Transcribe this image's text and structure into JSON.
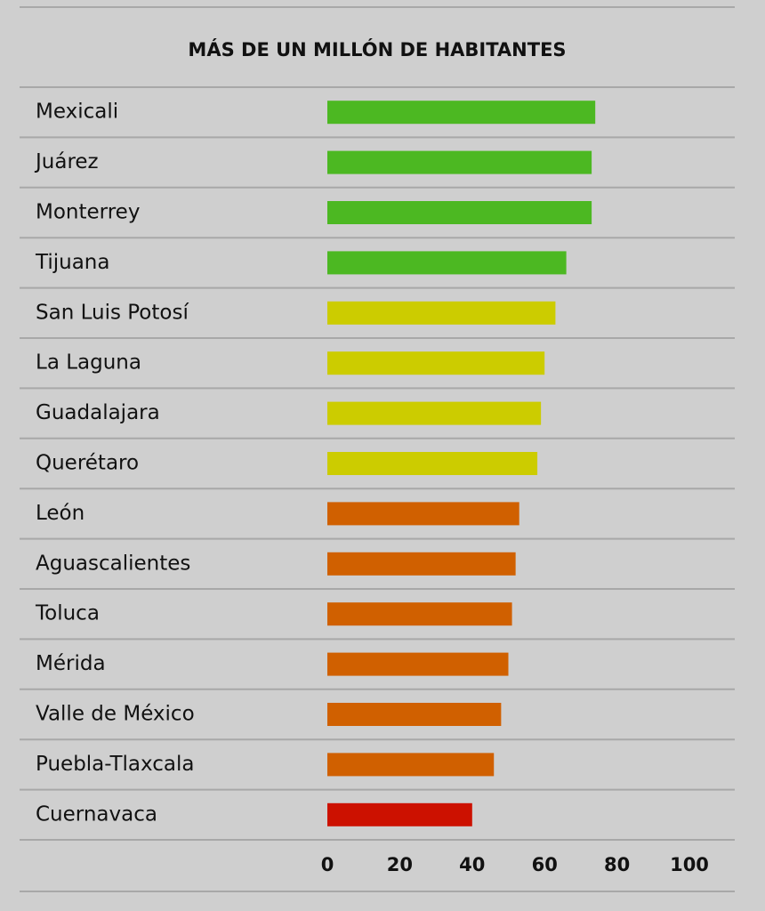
{
  "chart_data": {
    "type": "bar",
    "orientation": "horizontal",
    "title": "MÁS DE UN MILLÓN DE HABITANTES",
    "categories": [
      "Mexicali",
      "Juárez",
      "Monterrey",
      "Tijuana",
      "San Luis Potosí",
      "La Laguna",
      "Guadalajara",
      "Querétaro",
      "León",
      "Aguascalientes",
      "Toluca",
      "Mérida",
      "Valle de México",
      "Puebla-Tlaxcala",
      "Cuernavaca"
    ],
    "values": [
      74,
      73,
      73,
      66,
      63,
      60,
      59,
      58,
      53,
      52,
      51,
      50,
      48,
      46,
      40
    ],
    "colors": [
      "#4cb822",
      "#4cb822",
      "#4cb822",
      "#4cb822",
      "#cccc00",
      "#cccc00",
      "#cccc00",
      "#cccc00",
      "#d06000",
      "#d06000",
      "#d06000",
      "#d06000",
      "#d06000",
      "#d06000",
      "#cc1100"
    ],
    "xlim": [
      0,
      100
    ],
    "xticks": [
      0,
      20,
      40,
      60,
      80,
      100
    ],
    "grid": false
  }
}
